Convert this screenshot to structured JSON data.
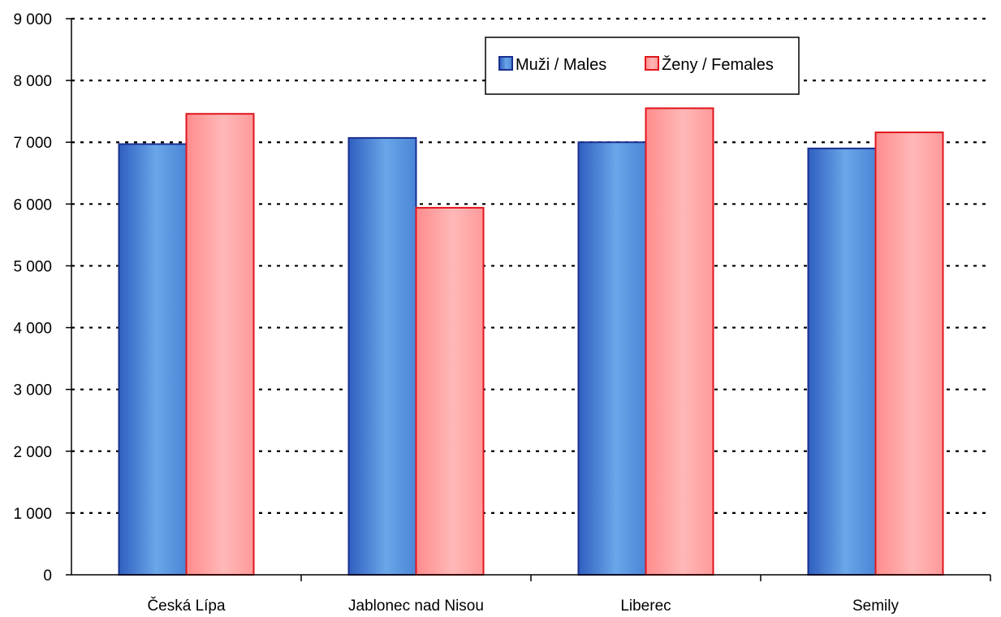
{
  "chart_data": {
    "type": "bar",
    "categories": [
      "Česká Lípa",
      "Jablonec nad Nisou",
      "Liberec",
      "Semily"
    ],
    "series": [
      {
        "name": "Muži / Males",
        "values": [
          6970,
          7070,
          7000,
          6900
        ]
      },
      {
        "name": "Ženy / Females",
        "values": [
          7460,
          5940,
          7550,
          7160
        ]
      }
    ],
    "ylim": [
      0,
      9000
    ],
    "yticks": [
      0,
      1000,
      2000,
      3000,
      4000,
      5000,
      6000,
      7000,
      8000,
      9000
    ],
    "ytick_labels": [
      "0",
      "1 000",
      "2 000",
      "3 000",
      "4 000",
      "5 000",
      "6 000",
      "7 000",
      "8 000",
      "9 000"
    ],
    "grid": "horizontal-dotted",
    "legend_position": "top-center",
    "colors": {
      "males_fill": "#4A86D6",
      "males_fill_light": "#6AA6E8",
      "males_stroke": "#1A2F8F",
      "females_fill": "#FF9A9A",
      "females_fill_light": "#FFB8B8",
      "females_stroke": "#E0161C"
    }
  }
}
